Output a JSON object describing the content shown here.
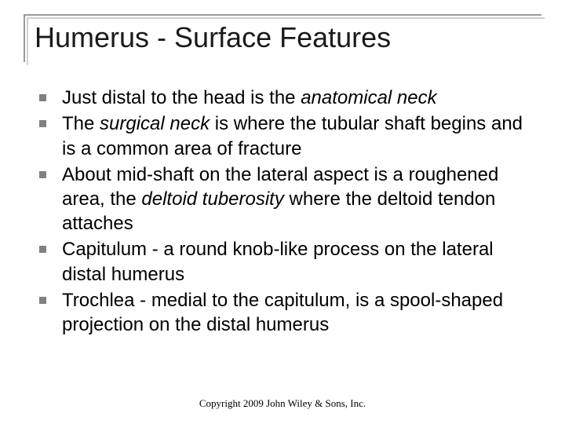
{
  "slide": {
    "title": "Humerus - Surface Features",
    "bullets": [
      {
        "runs": [
          {
            "t": "Just distal to the head is the ",
            "i": false
          },
          {
            "t": "anatomical neck",
            "i": true
          }
        ]
      },
      {
        "runs": [
          {
            "t": "The ",
            "i": false
          },
          {
            "t": "surgical neck",
            "i": true
          },
          {
            "t": " is where the tubular shaft begins and is a common area of fracture",
            "i": false
          }
        ]
      },
      {
        "runs": [
          {
            "t": "About mid-shaft on the lateral aspect is a roughened area, the ",
            "i": false
          },
          {
            "t": "deltoid tuberosity",
            "i": true
          },
          {
            "t": " where the deltoid tendon attaches",
            "i": false
          }
        ]
      },
      {
        "runs": [
          {
            "t": "Capitulum - a round knob-like process on the lateral distal humerus",
            "i": false
          }
        ]
      },
      {
        "runs": [
          {
            "t": "Trochlea - medial to the capitulum, is a spool-shaped projection on the distal humerus",
            "i": false
          }
        ]
      }
    ],
    "footer": "Copyright 2009 John Wiley & Sons, Inc.",
    "colors": {
      "background": "#ffffff",
      "title_text": "#1a1a1a",
      "body_text": "#000000",
      "bullet_fill": "#808080",
      "rule_gray": "#9a9a9a",
      "rule_shadow": "#d0d0d0"
    },
    "fonts": {
      "main": "Arial",
      "title_size_pt": 36,
      "body_size_pt": 24,
      "footer_family": "Times New Roman",
      "footer_size_pt": 13
    }
  }
}
